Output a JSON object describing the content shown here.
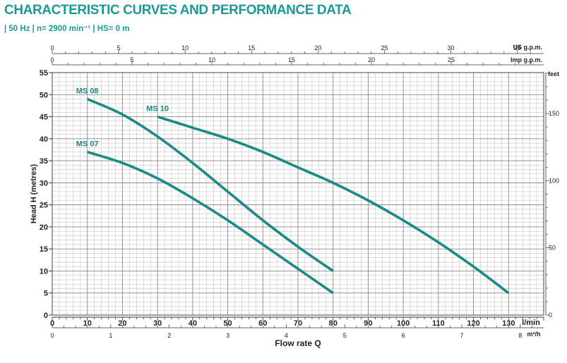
{
  "header": {
    "title": "CHARACTERISTIC CURVES AND PERFORMANCE DATA",
    "subtitle": "| 50 Hz  |  n= 2900 min⁻¹  |  HS= 0 m"
  },
  "chart_data": {
    "type": "line",
    "title": "CHARACTERISTIC CURVES AND PERFORMANCE DATA",
    "subtitle": "| 50 Hz | n= 2900 min⁻¹ | HS= 0 m",
    "xlabel": "Flow rate Q",
    "ylabel": "Head H (metres)",
    "x_unit": "l/min",
    "xlim": [
      0,
      140
    ],
    "ylim": [
      0,
      55
    ],
    "grid": true,
    "line_color": "#1b8a85",
    "x_ticks": [
      0,
      10,
      20,
      30,
      40,
      50,
      60,
      70,
      80,
      90,
      100,
      110,
      120,
      130
    ],
    "x_tick_labels": [
      "0",
      "10",
      "20",
      "30",
      "40",
      "50",
      "60",
      "70",
      "80",
      "90",
      "100",
      "110",
      "120",
      "130"
    ],
    "y_ticks": [
      0,
      5,
      10,
      15,
      20,
      25,
      30,
      35,
      40,
      45,
      50,
      55
    ],
    "y_tick_labels": [
      "0",
      "5",
      "10",
      "15",
      "20",
      "25",
      "30",
      "35",
      "40",
      "45",
      "50",
      "55"
    ],
    "secondary_axes": {
      "bottom_m3h": {
        "unit": "m³/h",
        "ticks": [
          0,
          1,
          2,
          3,
          4,
          5,
          6,
          7,
          8
        ],
        "tick_labels": [
          "0",
          "1",
          "2",
          "3",
          "4",
          "5",
          "6",
          "7",
          "8"
        ],
        "factor": 16.6667
      },
      "top_us_gpm": {
        "unit": "US g.p.m.",
        "ticks": [
          0,
          5,
          10,
          15,
          20,
          25,
          30,
          35
        ],
        "tick_labels": [
          "0",
          "5",
          "10",
          "15",
          "20",
          "25",
          "30",
          "35"
        ],
        "factor": 3.7854
      },
      "top_imp_gpm": {
        "unit": "Imp g.p.m.",
        "ticks": [
          0,
          5,
          10,
          15,
          20,
          25
        ],
        "tick_labels": [
          "0",
          "5",
          "10",
          "15",
          "20",
          "25"
        ],
        "factor": 4.5461
      },
      "right_feet": {
        "unit": "feet",
        "ticks": [
          0,
          50,
          100,
          150
        ],
        "tick_labels": [
          "0",
          "50",
          "100",
          "150"
        ],
        "factor": 0.3048
      }
    },
    "series": [
      {
        "name": "MS 07",
        "x": [
          10,
          20,
          30,
          40,
          50,
          60,
          70,
          80
        ],
        "y": [
          37,
          34.5,
          31,
          26.5,
          21.5,
          16,
          10.5,
          5
        ]
      },
      {
        "name": "MS 08",
        "x": [
          10,
          20,
          30,
          40,
          50,
          60,
          70,
          80
        ],
        "y": [
          49,
          45.5,
          40.5,
          34.5,
          28,
          21.5,
          15.5,
          10
        ]
      },
      {
        "name": "MS 10",
        "x": [
          30,
          40,
          50,
          60,
          70,
          80,
          90,
          100,
          110,
          120,
          130
        ],
        "y": [
          45,
          42.5,
          40,
          37,
          33.5,
          30,
          26,
          21.5,
          16.5,
          11,
          5
        ]
      }
    ]
  }
}
